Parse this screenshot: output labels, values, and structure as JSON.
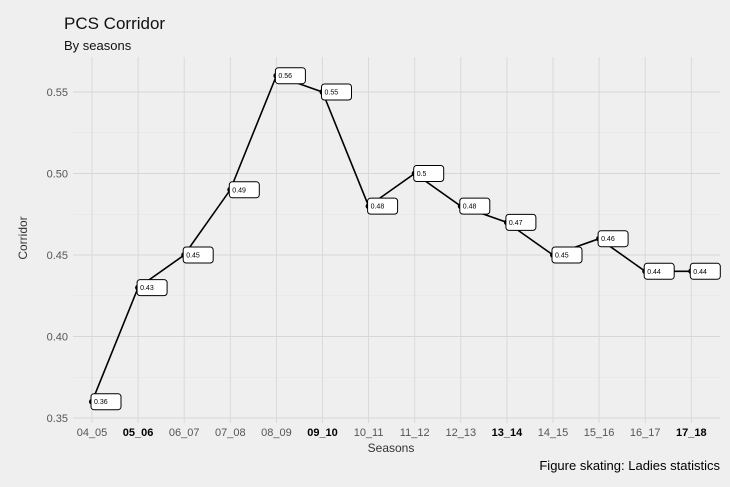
{
  "chart_data": {
    "type": "line",
    "title": "PCS Corridor",
    "subtitle": "By seasons",
    "caption": "Figure skating: Ladies statistics",
    "xlabel": "Seasons",
    "ylabel": "Corridor",
    "ylim": [
      0.35,
      0.57
    ],
    "yticks": [
      "0.35",
      "0.40",
      "0.45",
      "0.50",
      "0.55"
    ],
    "categories": [
      "04_05",
      "05_06",
      "06_07",
      "07_08",
      "08_09",
      "09_10",
      "10_11",
      "11_12",
      "12_13",
      "13_14",
      "14_15",
      "15_16",
      "16_17",
      "17_18"
    ],
    "bold_categories": [
      "05_06",
      "09_10",
      "13_14",
      "17_18"
    ],
    "values": [
      0.36,
      0.43,
      0.45,
      0.49,
      0.56,
      0.55,
      0.48,
      0.5,
      0.48,
      0.47,
      0.45,
      0.46,
      0.44,
      0.44
    ],
    "data_labels": [
      "0.36",
      "0.43",
      "0.45",
      "0.49",
      "0.56",
      "0.55",
      "0.48",
      "0.5",
      "0.48",
      "0.47",
      "0.45",
      "0.46",
      "0.44",
      "0.44"
    ],
    "grid": true,
    "legend": "none",
    "colors": {
      "background": "#efefef",
      "line": "#000000",
      "label_fill": "#ffffff"
    }
  }
}
